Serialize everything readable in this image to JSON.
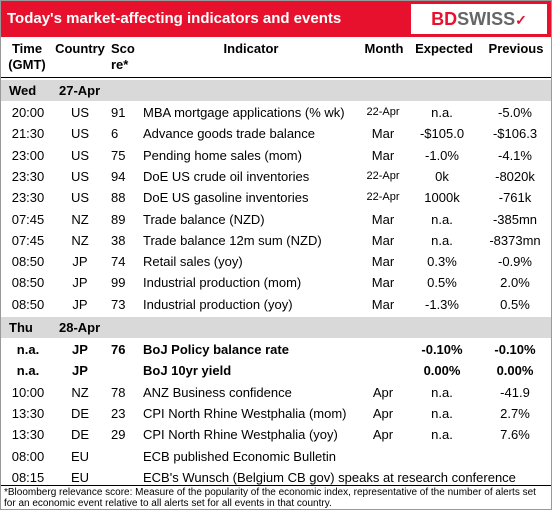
{
  "header": {
    "title": "Today's market-affecting indicators and events",
    "logo": {
      "bd": "BD",
      "swiss": "SWISS"
    }
  },
  "columns": {
    "time": "Time (GMT)",
    "country": "Country",
    "score": "Sco re*",
    "indicator": "Indicator",
    "month": "Month",
    "expected": "Expected",
    "previous": "Previous"
  },
  "sections": [
    {
      "day": "Wed",
      "date": "27-Apr",
      "rows": [
        {
          "time": "20:00",
          "country": "US",
          "score": 91,
          "indicator": "MBA mortgage applications (% wk)",
          "month": "22-Apr",
          "expected": "n.a.",
          "previous": "-5.0%"
        },
        {
          "time": "21:30",
          "country": "US",
          "score": 6,
          "indicator": "Advance goods trade balance",
          "month": "Mar",
          "expected": "-$105.0",
          "previous": "-$106.3"
        },
        {
          "time": "23:00",
          "country": "US",
          "score": 75,
          "indicator": "Pending home sales (mom)",
          "month": "Mar",
          "expected": "-1.0%",
          "previous": "-4.1%"
        },
        {
          "time": "23:30",
          "country": "US",
          "score": 94,
          "indicator": "DoE US crude oil inventories",
          "month": "22-Apr",
          "expected": "0k",
          "previous": "-8020k"
        },
        {
          "time": "23:30",
          "country": "US",
          "score": 88,
          "indicator": "DoE US gasoline inventories",
          "month": "22-Apr",
          "expected": "1000k",
          "previous": "-761k"
        },
        {
          "time": "07:45",
          "country": "NZ",
          "score": 89,
          "indicator": "Trade balance (NZD)",
          "month": "Mar",
          "expected": "n.a.",
          "previous": "-385mn"
        },
        {
          "time": "07:45",
          "country": "NZ",
          "score": 38,
          "indicator": "Trade balance 12m sum (NZD)",
          "month": "Mar",
          "expected": "n.a.",
          "previous": "-8373mn"
        },
        {
          "time": "08:50",
          "country": "JP",
          "score": 74,
          "indicator": "Retail sales (yoy)",
          "month": "Mar",
          "expected": "0.3%",
          "previous": "-0.9%"
        },
        {
          "time": "08:50",
          "country": "JP",
          "score": 99,
          "indicator": "Industrial production (mom)",
          "month": "Mar",
          "expected": "0.5%",
          "previous": "2.0%"
        },
        {
          "time": "08:50",
          "country": "JP",
          "score": 73,
          "indicator": "Industrial production (yoy)",
          "month": "Mar",
          "expected": "-1.3%",
          "previous": "0.5%"
        }
      ]
    },
    {
      "day": "Thu",
      "date": "28-Apr",
      "rows": [
        {
          "time": "n.a.",
          "country": "JP",
          "score": 76,
          "indicator": "BoJ  Policy balance rate",
          "expected": "-0.10%",
          "previous": "-0.10%",
          "bold": true
        },
        {
          "time": "n.a.",
          "country": "JP",
          "indicator": "BoJ 10yr yield",
          "expected": "0.00%",
          "previous": "0.00%",
          "bold": true
        },
        {
          "time": "10:00",
          "country": "NZ",
          "score": 78,
          "indicator": "ANZ Business confidence",
          "month": "Apr",
          "expected": "n.a.",
          "previous": "-41.9"
        },
        {
          "time": "13:30",
          "country": "DE",
          "score": 23,
          "indicator": "CPI North Rhine Westphalia (mom)",
          "month": "Apr",
          "expected": "n.a.",
          "previous": "2.7%"
        },
        {
          "time": "13:30",
          "country": "DE",
          "score": 29,
          "indicator": "CPI North Rhine Westphalia (yoy)",
          "month": "Apr",
          "expected": "n.a.",
          "previous": "7.6%"
        },
        {
          "time": "08:00",
          "country": "EU",
          "indicator": "ECB published Economic Bulletin"
        },
        {
          "time": "08:15",
          "country": "EU",
          "indicator": "ECB's Wunsch (Belgium CB gov) speaks at research conference"
        }
      ]
    }
  ],
  "footnote": "*Bloomberg relevance score:  Measure of the popularity of the economic index, representative of the number of alerts set for an economic event relative to all alerts set for all events in that country."
}
